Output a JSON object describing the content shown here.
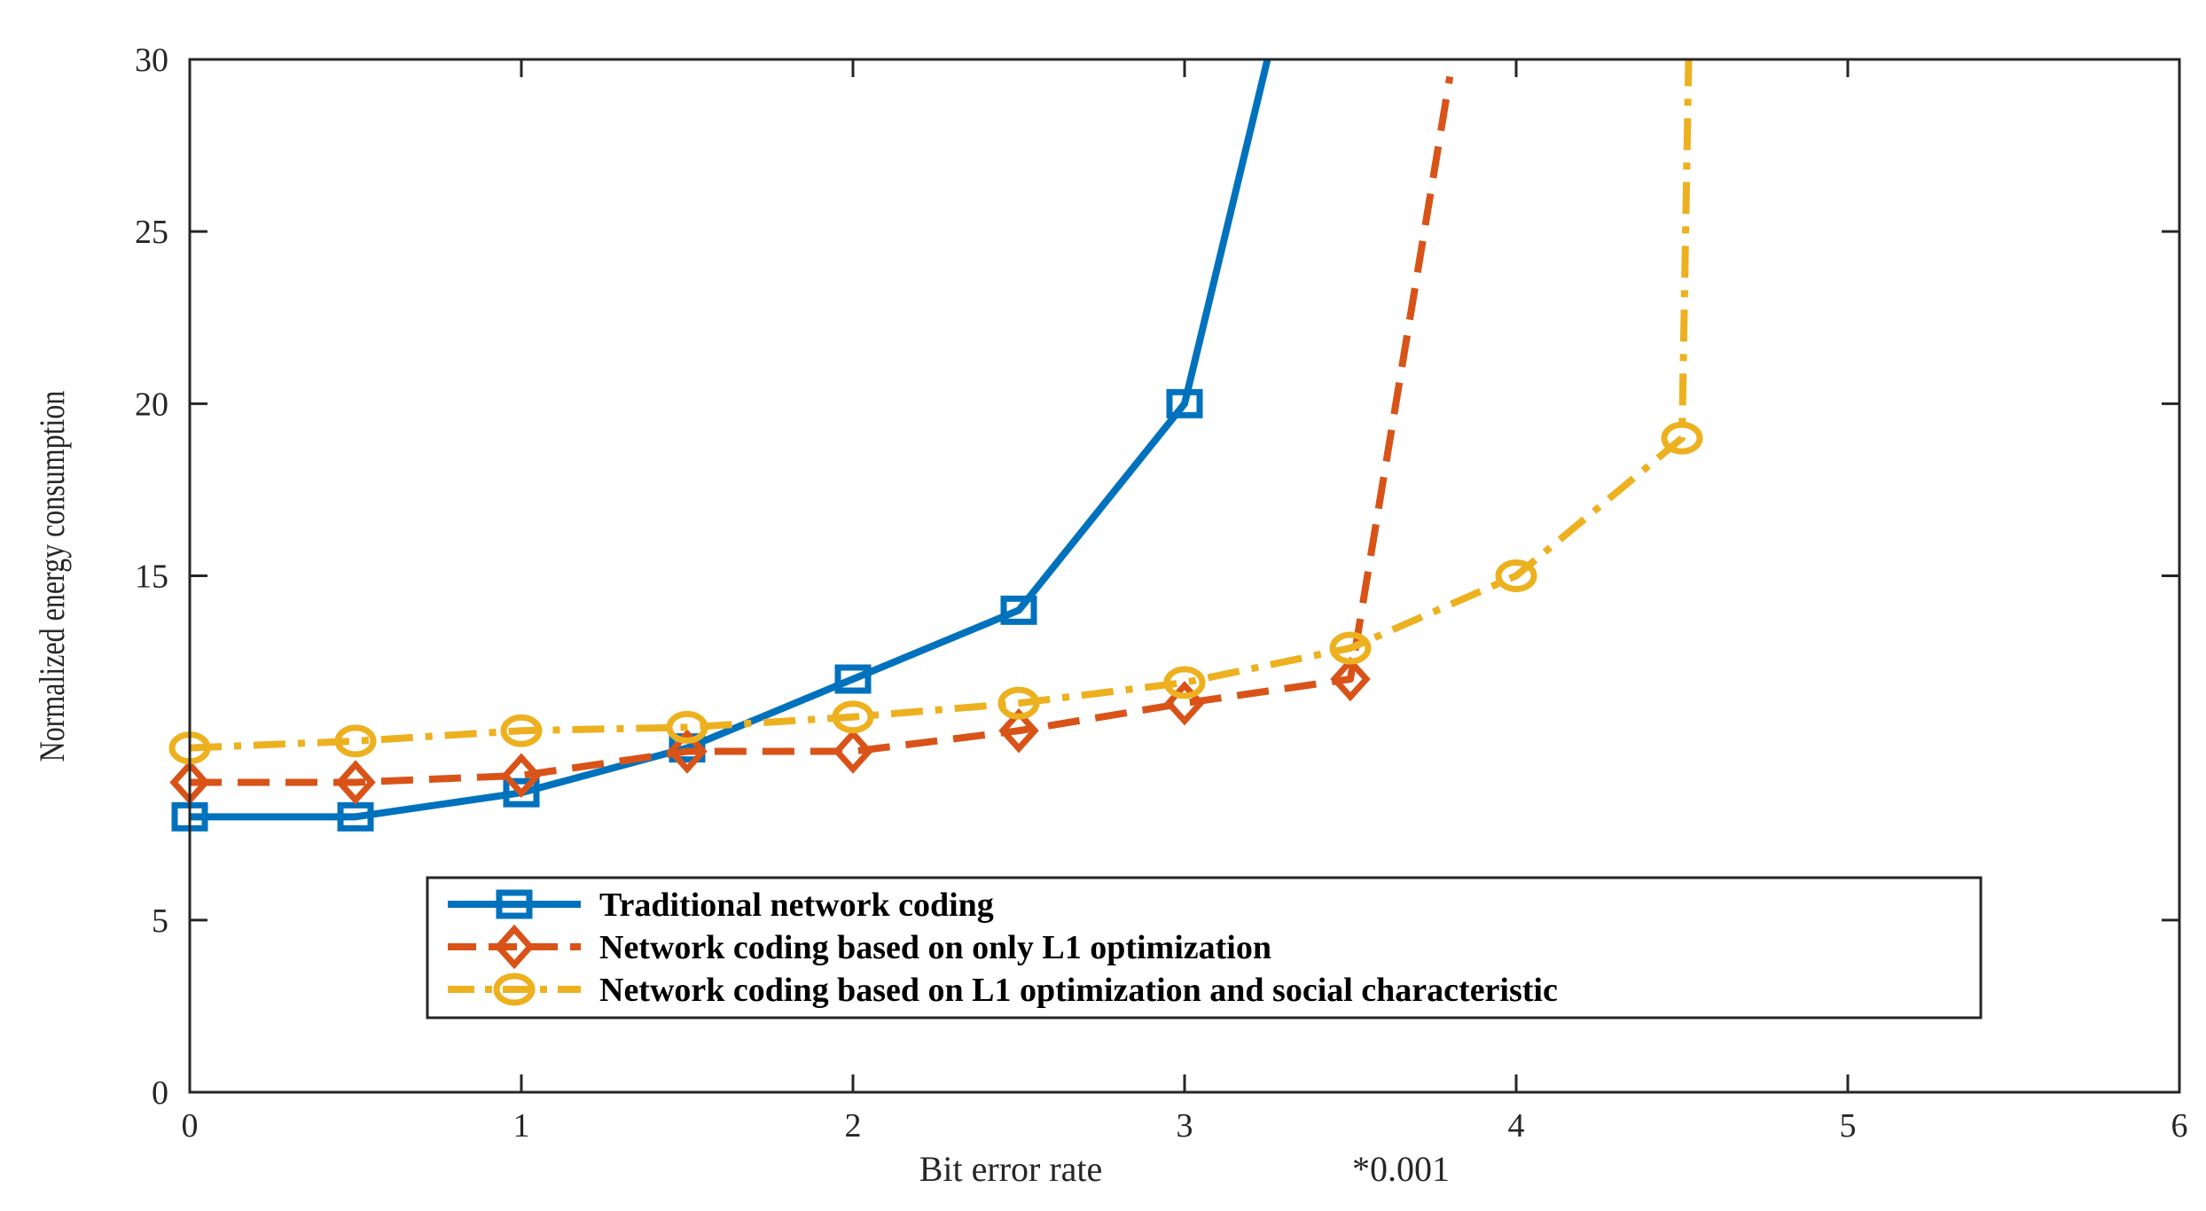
{
  "chart_data": {
    "type": "line",
    "title": "",
    "xlabel": "Bit error rate",
    "x_multiplier": "*0.001",
    "ylabel": "Normalized energy consumption",
    "xlim": [
      0,
      6
    ],
    "ylim": [
      0,
      30
    ],
    "x_ticks": [
      "0",
      "1",
      "2",
      "3",
      "4",
      "5",
      "6"
    ],
    "y_ticks": [
      "0",
      "5",
      "15",
      "20",
      "25",
      "30"
    ],
    "grid": false,
    "legend_position": "bottom-center",
    "series": [
      {
        "name": "Traditional network coding",
        "color": "#0072BD",
        "line_style": "solid",
        "marker": "square",
        "x": [
          0,
          0.5,
          1,
          1.5,
          2,
          2.5,
          3
        ],
        "y": [
          8,
          8,
          8.7,
          10,
          12,
          14,
          20
        ],
        "tail": [
          3.25,
          30
        ]
      },
      {
        "name": "Network coding based on only L1 optimization",
        "color": "#D95319",
        "line_style": "dashed",
        "marker": "diamond",
        "x": [
          0,
          0.5,
          1,
          1.5,
          2,
          2.5,
          3,
          3.5
        ],
        "y": [
          9,
          9,
          9.2,
          9.9,
          9.9,
          10.5,
          11.3,
          12
        ],
        "tail": [
          3.8,
          29.5
        ]
      },
      {
        "name": "Network coding based on L1 optimization  and social characteristic",
        "color": "#EDB120",
        "line_style": "dashdot",
        "marker": "circle",
        "x": [
          0,
          0.5,
          1,
          1.5,
          2,
          2.5,
          3,
          3.5,
          4,
          4.5
        ],
        "y": [
          10,
          10.2,
          10.5,
          10.6,
          10.9,
          11.3,
          11.9,
          12.9,
          15,
          19
        ],
        "tail": [
          4.52,
          30
        ]
      }
    ]
  }
}
